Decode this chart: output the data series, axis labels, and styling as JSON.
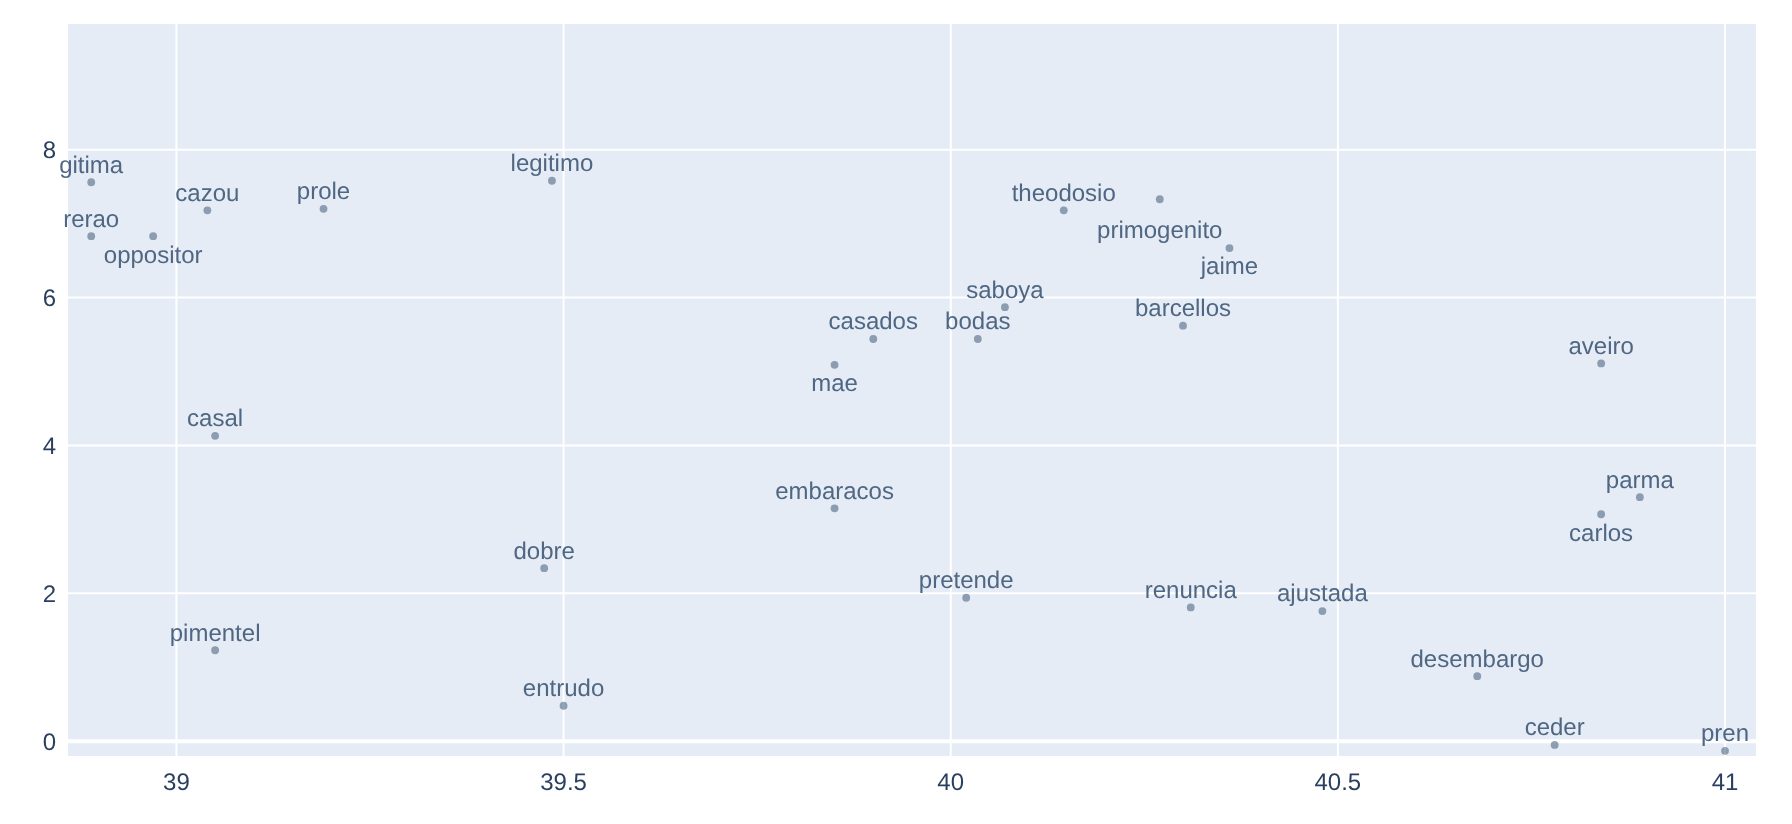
{
  "chart_data": {
    "type": "scatter",
    "xlim": [
      38.86,
      41.04
    ],
    "ylim": [
      -0.2,
      9.7
    ],
    "xticks": [
      39,
      39.5,
      40,
      40.5,
      41
    ],
    "yticks": [
      0,
      2,
      4,
      6,
      8
    ],
    "grid": true,
    "marker": "circle",
    "series": [
      {
        "color": "#506784",
        "x": [
          38.89,
          39.04,
          38.89,
          38.97,
          39.19,
          39.485,
          39.05,
          40.146,
          40.27,
          40.36,
          40.07,
          39.9,
          40.035,
          39.85,
          40.3,
          40.84,
          40.89,
          40.84,
          39.85,
          39.475,
          40.02,
          40.31,
          40.48,
          40.68,
          39.05,
          39.5,
          40.78,
          41.0
        ],
        "values": [
          7.56,
          7.18,
          6.83,
          6.83,
          7.2,
          7.58,
          4.13,
          7.18,
          7.33,
          6.67,
          5.87,
          5.44,
          5.44,
          5.09,
          5.62,
          5.11,
          3.3,
          3.07,
          3.15,
          2.34,
          1.94,
          1.81,
          1.76,
          0.88,
          1.23,
          0.48,
          -0.05,
          -0.13
        ],
        "value_labels": [
          "gitima",
          "cazou",
          "rerao",
          "oppositor",
          "prole",
          "legitimo",
          "casal",
          "theodosio",
          "primogenito",
          "jaime",
          "saboya",
          "casados",
          "bodas",
          "mae",
          "barcellos",
          "aveiro",
          "parma",
          "carlos",
          "embaracos",
          "dobre",
          "pretende",
          "renuncia",
          "ajustada",
          "desembargo",
          "pimentel",
          "entrudo",
          "ceder",
          "pren"
        ]
      }
    ]
  }
}
